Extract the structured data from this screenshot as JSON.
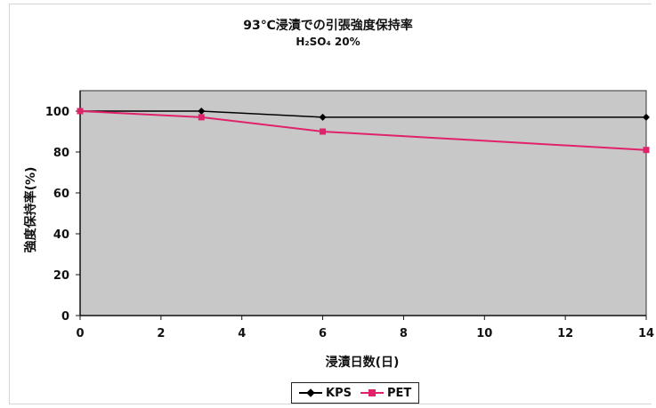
{
  "chart_data": {
    "type": "line",
    "title": "93℃浸漬での引張強度保持率",
    "subtitle": "H₂SO₄ 20%",
    "xlabel": "浸漬日数(日)",
    "ylabel": "強度保持率(%)",
    "x": [
      0,
      3,
      6,
      14
    ],
    "xlim": [
      0,
      14
    ],
    "ylim": [
      0,
      110
    ],
    "xticks": [
      0,
      2,
      4,
      6,
      8,
      10,
      12,
      14
    ],
    "yticks": [
      0,
      20,
      40,
      60,
      80,
      100
    ],
    "grid": false,
    "legend_position": "bottom-center",
    "plot_background": "#c8c8c8",
    "series": [
      {
        "name": "KPS",
        "color": "#000000",
        "marker": "diamond",
        "values": [
          100,
          100,
          97,
          97
        ]
      },
      {
        "name": "PET",
        "color": "#e0226a",
        "marker": "square",
        "values": [
          100,
          97,
          90,
          81
        ]
      }
    ]
  }
}
